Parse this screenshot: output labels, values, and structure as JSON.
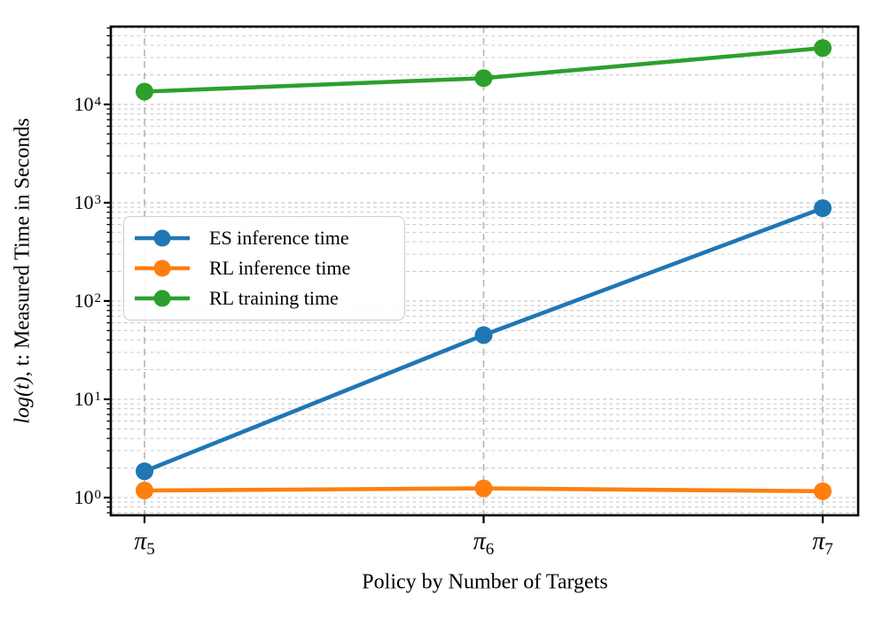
{
  "chart_data": {
    "type": "line",
    "title": "",
    "xlabel": "Policy by Number of Targets",
    "ylabel": "log(t), t: Measured Time in Seconds",
    "ylabel_parts": [
      {
        "text": "log(t)",
        "italic": true
      },
      {
        "text": ", t: Measured Time in Seconds",
        "italic": false
      }
    ],
    "x_categories": [
      {
        "symbol": "π",
        "subscript": "5"
      },
      {
        "symbol": "π",
        "subscript": "6"
      },
      {
        "symbol": "π",
        "subscript": "7"
      }
    ],
    "y_scale": "log",
    "y_tick_base": "10",
    "y_tick_exponents": [
      0,
      1,
      2,
      3,
      4
    ],
    "ylim": [
      0.66,
      62000
    ],
    "grid": {
      "horizontal": "major+minor",
      "vertical": "major",
      "style": "dashed"
    },
    "legend": {
      "position": "upper-left-inside"
    },
    "series": [
      {
        "name": "ES inference time",
        "color": "#1f77b4",
        "values": [
          1.85,
          45,
          880
        ]
      },
      {
        "name": "RL inference time",
        "color": "#ff7f0e",
        "values": [
          1.18,
          1.24,
          1.16
        ]
      },
      {
        "name": "RL training time",
        "color": "#2ca02c",
        "values": [
          13500,
          18500,
          37500
        ]
      }
    ],
    "style": {
      "frame_color": "#000000",
      "hgrid_color": "#cccccc",
      "vgrid_color": "#b4b4b4",
      "background": "#ffffff"
    }
  }
}
